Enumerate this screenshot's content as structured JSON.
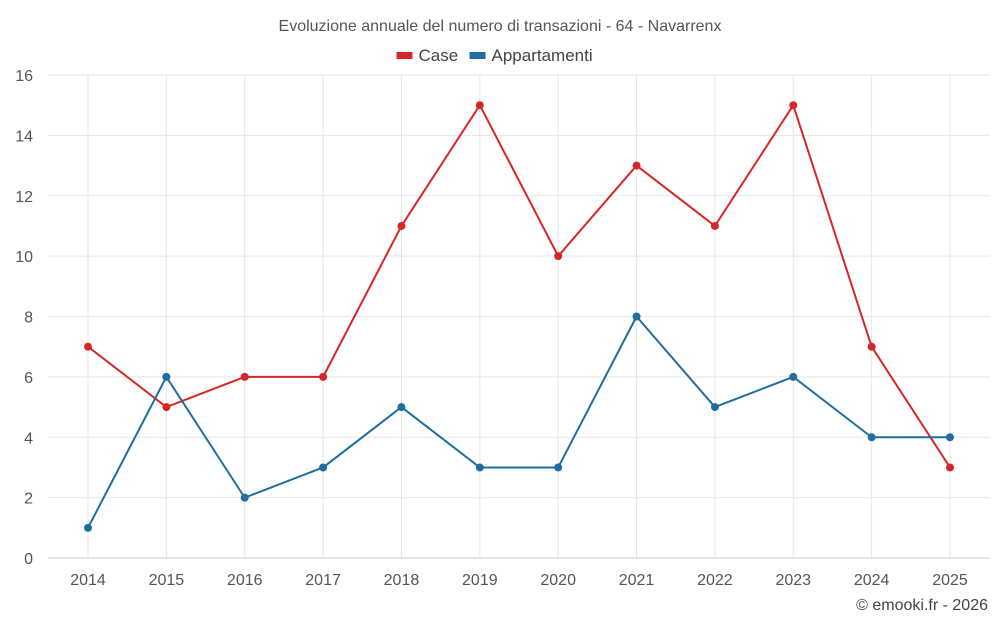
{
  "chart_data": {
    "type": "line",
    "title": "Evoluzione annuale del numero di transazioni - 64 - Navarrenx",
    "categories": [
      "2014",
      "2015",
      "2016",
      "2017",
      "2018",
      "2019",
      "2020",
      "2021",
      "2022",
      "2023",
      "2024",
      "2025"
    ],
    "series": [
      {
        "name": "Case",
        "color": "#d62728",
        "values": [
          7,
          5,
          6,
          6,
          11,
          15,
          10,
          13,
          11,
          15,
          7,
          3
        ]
      },
      {
        "name": "Appartamenti",
        "color": "#1f6ea0",
        "values": [
          1,
          6,
          2,
          3,
          5,
          3,
          3,
          8,
          5,
          6,
          4,
          4
        ]
      }
    ],
    "ylim": [
      0,
      16
    ],
    "yticks": [
      0,
      2,
      4,
      6,
      8,
      10,
      12,
      14,
      16
    ],
    "grid": true,
    "legend": "top-center",
    "xlabel": "",
    "ylabel": ""
  },
  "credit": "© emooki.fr - 2026"
}
